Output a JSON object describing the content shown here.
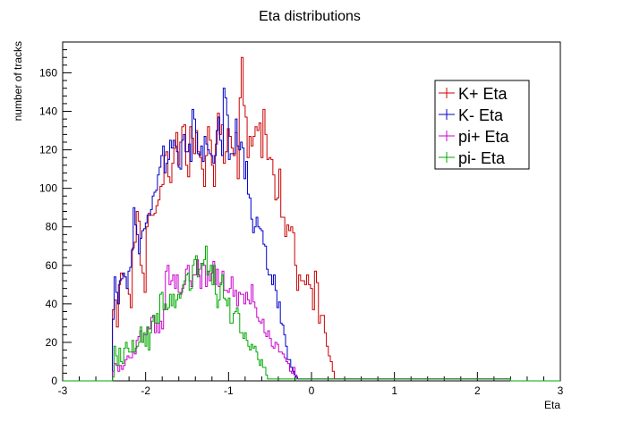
{
  "chart_data": {
    "type": "line",
    "title": "Eta distributions",
    "xlabel": "Eta",
    "ylabel": "number of tracks",
    "xlim": [
      -3,
      3
    ],
    "ylim": [
      0,
      176
    ],
    "x_ticks": [
      -3,
      -2,
      -1,
      0,
      1,
      2,
      3
    ],
    "y_ticks": [
      0,
      20,
      40,
      60,
      80,
      100,
      120,
      140,
      160
    ],
    "grid": false,
    "legend_position": "top-right",
    "bin_range": [
      -2.4,
      2.4
    ],
    "series": [
      {
        "name": "K+ Eta",
        "color": "#cc0000",
        "values": [
          37,
          42,
          28,
          50,
          56,
          55,
          54,
          48,
          45,
          38,
          69,
          72,
          88,
          83,
          60,
          56,
          46,
          80,
          87,
          86,
          86,
          87,
          91,
          94,
          101,
          102,
          117,
          119,
          106,
          103,
          113,
          121,
          129,
          112,
          124,
          132,
          133,
          112,
          106,
          132,
          126,
          118,
          130,
          119,
          116,
          110,
          101,
          117,
          132,
          125,
          112,
          101,
          123,
          139,
          128,
          133,
          113,
          119,
          131,
          127,
          121,
          117,
          129,
          105,
          147,
          168,
          143,
          137,
          116,
          127,
          122,
          127,
          132,
          130,
          134,
          116,
          141,
          128,
          115,
          116,
          115,
          107,
          94,
          95,
          110,
          85,
          85,
          75,
          81,
          78,
          80,
          77,
          60,
          47,
          55,
          52,
          52,
          50,
          55,
          50,
          48,
          37,
          57,
          51,
          30,
          34,
          34,
          25,
          18,
          13,
          10,
          5,
          1,
          1,
          1,
          1,
          1,
          1,
          1,
          1,
          1,
          1,
          1,
          1,
          1,
          1,
          1,
          1,
          1,
          1,
          1,
          1,
          1,
          1,
          1,
          1,
          1,
          1,
          1,
          1,
          1,
          1,
          1,
          1,
          1,
          1,
          1,
          1,
          1,
          1,
          1,
          1,
          1,
          1,
          1,
          1,
          1,
          1,
          1,
          1,
          1,
          1,
          1,
          1,
          1,
          1,
          1,
          1,
          1,
          1,
          1,
          1,
          1,
          1,
          1,
          1,
          1,
          1,
          1,
          1,
          1,
          1,
          1,
          1,
          1,
          1,
          1,
          1,
          1,
          1,
          1,
          1,
          1,
          1,
          1,
          1,
          1,
          1,
          1,
          1,
          1
        ]
      },
      {
        "name": "K- Eta",
        "color": "#0000cc",
        "values": [
          32,
          54,
          46,
          40,
          52,
          53,
          56,
          54,
          48,
          57,
          59,
          68,
          90,
          81,
          76,
          66,
          74,
          78,
          79,
          82,
          86,
          86,
          89,
          96,
          98,
          99,
          107,
          111,
          117,
          122,
          108,
          113,
          115,
          125,
          121,
          125,
          122,
          119,
          111,
          110,
          125,
          128,
          119,
          119,
          123,
          114,
          141,
          136,
          129,
          118,
          117,
          122,
          114,
          127,
          123,
          120,
          118,
          117,
          113,
          117,
          130,
          137,
          125,
          117,
          152,
          147,
          138,
          115,
          118,
          118,
          118,
          136,
          122,
          120,
          124,
          121,
          105,
          114,
          97,
          95,
          84,
          77,
          80,
          85,
          80,
          79,
          78,
          71,
          70,
          58,
          55,
          55,
          50,
          55,
          47,
          38,
          41,
          30,
          29,
          24,
          18,
          11,
          11,
          7,
          5,
          3,
          2,
          1,
          1,
          1,
          1,
          1,
          1,
          1,
          1,
          1,
          1,
          1,
          1,
          1,
          1,
          1,
          1,
          1,
          1,
          1,
          1,
          1,
          1,
          1,
          1,
          1,
          1,
          1,
          1,
          1,
          1,
          1,
          1,
          1,
          1,
          1,
          1,
          1,
          1,
          1,
          1,
          1,
          1,
          1,
          1,
          1,
          1,
          1,
          1,
          1,
          1,
          1,
          1,
          1,
          1,
          1,
          1,
          1,
          1,
          1,
          1,
          1,
          1,
          1,
          1,
          1,
          1,
          1,
          1,
          1,
          1,
          1,
          1,
          1,
          1,
          1,
          1,
          1,
          1,
          1,
          1,
          1,
          1,
          1,
          1,
          1,
          1,
          1,
          1,
          1,
          1,
          1,
          1,
          1,
          1,
          1,
          1,
          1,
          1,
          1,
          1,
          1,
          1,
          1,
          1,
          1,
          1,
          1,
          1,
          1,
          1,
          1,
          1,
          1,
          1,
          1,
          1,
          1,
          1,
          1,
          1,
          1,
          1,
          1
        ]
      },
      {
        "name": "pi+ Eta",
        "color": "#cc00cc",
        "values": [
          5,
          9,
          8,
          5,
          8,
          6,
          8,
          11,
          13,
          12,
          12,
          15,
          14,
          21,
          23,
          26,
          20,
          24,
          24,
          28,
          27,
          33,
          34,
          25,
          30,
          25,
          31,
          27,
          37,
          57,
          60,
          50,
          52,
          55,
          48,
          55,
          46,
          45,
          48,
          50,
          58,
          60,
          52,
          49,
          55,
          55,
          63,
          55,
          48,
          61,
          60,
          49,
          57,
          52,
          56,
          62,
          50,
          58,
          49,
          51,
          57,
          47,
          47,
          46,
          48,
          54,
          44,
          47,
          39,
          46,
          45,
          45,
          40,
          46,
          42,
          40,
          50,
          41,
          38,
          33,
          31,
          30,
          32,
          25,
          23,
          26,
          22,
          18,
          17,
          20,
          19,
          15,
          15,
          14,
          12,
          10,
          9,
          5,
          4,
          7,
          3,
          1,
          1,
          1,
          1,
          1,
          1,
          1,
          1,
          1,
          1,
          1,
          1,
          1,
          1,
          1,
          1,
          1,
          1,
          1,
          1,
          1,
          1,
          1,
          1,
          1,
          1,
          1,
          1,
          1,
          1,
          1,
          1,
          1,
          1,
          1,
          1,
          1,
          1,
          1,
          1,
          1,
          1,
          1,
          1,
          1,
          1,
          1,
          1,
          1,
          1,
          1,
          1,
          1,
          1,
          1,
          1,
          1,
          1,
          1,
          1,
          1,
          1,
          1,
          1,
          1,
          1,
          1,
          1,
          1,
          1,
          1,
          1,
          1,
          1,
          1,
          1,
          1,
          1,
          1,
          1,
          1,
          1,
          1,
          1,
          1,
          1,
          1,
          1,
          1,
          1,
          1,
          1,
          1,
          1,
          1,
          1,
          1,
          1,
          1,
          1,
          1,
          1,
          1,
          1,
          1,
          1,
          1,
          1,
          1,
          1,
          1,
          1,
          1,
          1,
          1,
          1,
          1
        ]
      },
      {
        "name": "pi- Eta",
        "color": "#00aa00",
        "values": [
          2,
          18,
          13,
          8,
          17,
          10,
          9,
          17,
          20,
          17,
          15,
          15,
          21,
          15,
          17,
          18,
          20,
          28,
          20,
          25,
          18,
          28,
          16,
          25,
          31,
          34,
          30,
          35,
          30,
          45,
          46,
          37,
          40,
          37,
          38,
          45,
          39,
          45,
          38,
          42,
          45,
          43,
          46,
          50,
          52,
          55,
          56,
          47,
          48,
          60,
          63,
          65,
          54,
          58,
          61,
          60,
          63,
          70,
          55,
          57,
          60,
          50,
          60,
          45,
          38,
          42,
          50,
          55,
          43,
          42,
          39,
          43,
          30,
          30,
          35,
          36,
          38,
          35,
          25,
          25,
          22,
          25,
          21,
          18,
          16,
          19,
          17,
          18,
          15,
          11,
          8,
          11,
          7,
          7,
          3,
          1,
          1,
          1,
          1,
          1,
          1,
          1,
          1,
          1,
          1,
          1,
          1,
          1,
          1,
          1,
          1,
          1,
          1,
          1,
          1,
          1,
          1,
          1,
          1,
          1,
          1,
          1,
          1,
          1,
          1,
          1,
          1,
          1,
          1,
          1,
          1,
          1,
          1,
          1,
          1,
          1,
          1,
          1,
          1,
          1,
          1,
          1,
          1,
          1,
          1,
          1,
          1,
          1,
          1,
          1,
          1,
          1,
          1,
          1,
          1,
          1,
          1,
          1,
          1,
          1,
          1,
          1,
          1,
          1,
          1,
          1,
          1,
          1,
          1,
          1,
          1,
          1,
          1,
          1,
          1,
          1,
          1,
          1,
          1,
          1,
          1,
          1,
          1,
          1,
          1,
          1,
          1,
          1,
          1,
          1,
          1,
          1,
          1,
          1,
          1,
          1,
          1,
          1,
          1,
          1,
          1,
          1,
          1,
          1,
          1,
          1,
          1,
          1,
          1,
          1,
          1,
          1,
          1,
          1,
          1,
          1,
          1,
          1,
          1,
          1,
          1,
          1,
          1,
          1,
          1,
          1,
          1,
          1,
          1,
          1,
          1,
          1,
          1,
          1,
          1,
          1,
          1,
          1,
          1,
          1,
          1,
          1,
          1,
          1
        ]
      }
    ]
  }
}
